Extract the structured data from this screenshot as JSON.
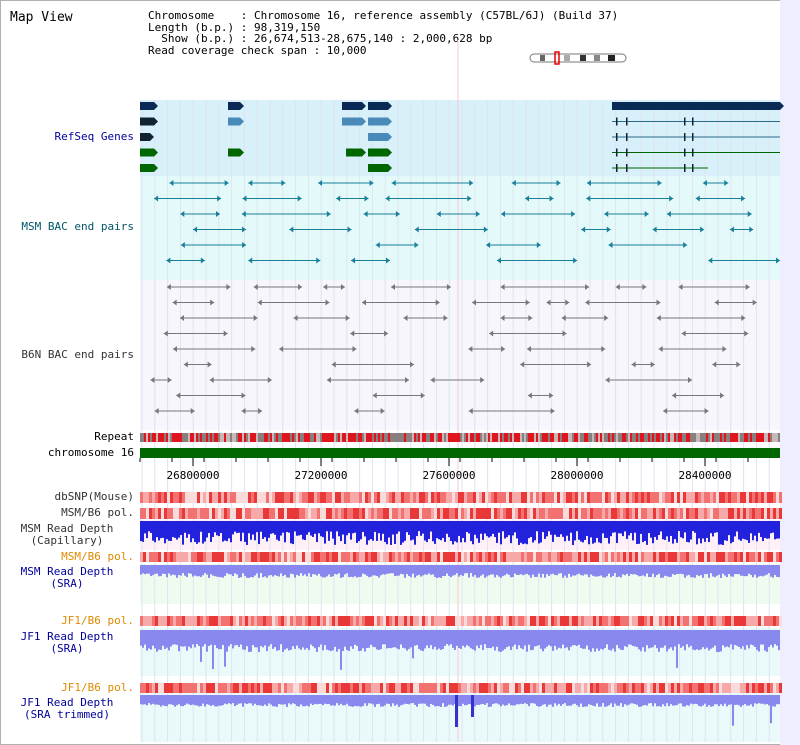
{
  "title": "Map View",
  "info": {
    "chromosome": "Chromosome    : Chromosome 16, reference assembly (C57BL/6J) (Build 37)",
    "length": "Length (b.p.) : 98,319,150",
    "show": "  Show (b.p.) : 26,674,513-28,675,140 : 2,000,628 bp",
    "coverage": "Read coverage check span : 10,000"
  },
  "tracks": {
    "refseq": "RefSeq Genes",
    "msm_bac": "MSM BAC end pairs",
    "b6n_bac": "B6N BAC end pairs",
    "repeat": "Repeat",
    "chromosome": "chromosome 16",
    "dbsnp": "dbSNP(Mouse)",
    "msm_b6_pol_1": "MSM/B6 pol.",
    "msm_depth_cap": "MSM Read Depth\n(Capillary)",
    "msm_b6_pol_2": "MSM/B6 pol.",
    "msm_depth_sra": "MSM Read Depth\n(SRA)",
    "jf1_b6_pol_1": "JF1/B6 pol.",
    "jf1_depth_sra": "JF1 Read Depth\n(SRA)",
    "jf1_b6_pol_2": "JF1/B6 pol.",
    "jf1_depth_trim": "JF1 Read Depth\n(SRA trimmed)"
  },
  "axis_ticks": [
    "26800000",
    "27200000",
    "27600000",
    "28000000",
    "28400000"
  ],
  "colors": {
    "label_blue": "#000099",
    "label_teal": "#005566",
    "label_gray": "#333333",
    "label_orange": "#e08a00",
    "refseq_bg": "#d8f0fa",
    "msm_bg": "#e4fafa",
    "b6n_bg": "#f6f6fc",
    "chrom_green": "#006600",
    "depth_blue": "#2222dd",
    "depth_light": "#8888ee"
  }
}
